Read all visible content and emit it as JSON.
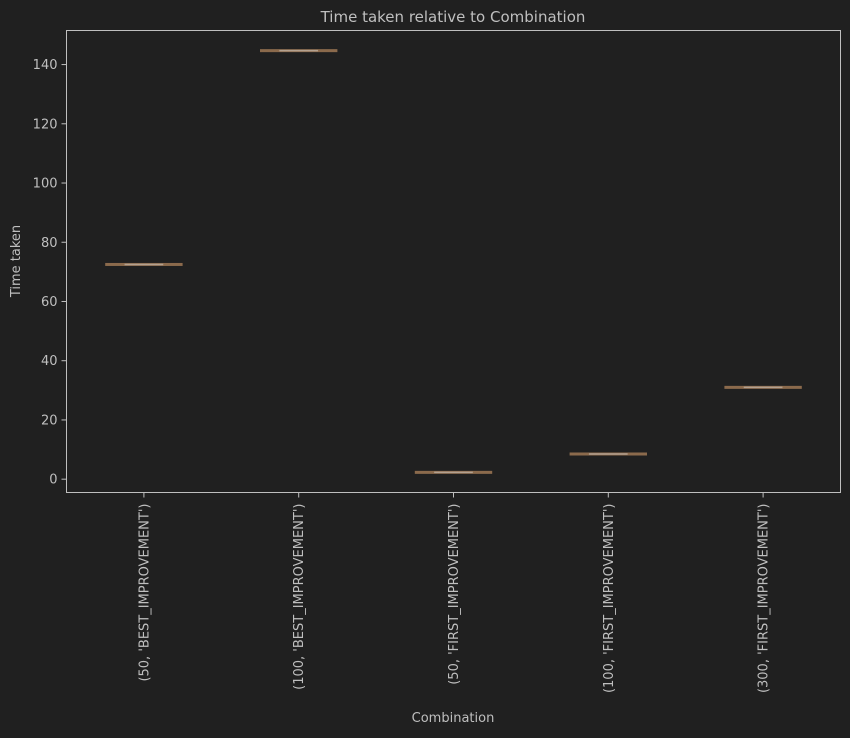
{
  "chart_data": {
    "type": "box",
    "title": "Time taken relative to Combination",
    "xlabel": "Combination",
    "ylabel": "Time taken",
    "categories": [
      "(50, 'BEST_IMPROVEMENT')",
      "(100, 'BEST_IMPROVEMENT')",
      "(50, 'FIRST_IMPROVEMENT')",
      "(100, 'FIRST_IMPROVEMENT')",
      "(300, 'FIRST_IMPROVEMENT')"
    ],
    "values": [
      72.5,
      144.7,
      2.3,
      8.5,
      31.0
    ],
    "ylim": [
      -4.5,
      151.5
    ],
    "yticks": [
      0,
      20,
      40,
      60,
      80,
      100,
      120,
      140
    ],
    "grid": false,
    "colors": {
      "background": "#202020",
      "text": "#bfbfbf",
      "axis": "#bfbfbf",
      "box": "#8b6a4c",
      "median": "#b2a08f"
    }
  }
}
